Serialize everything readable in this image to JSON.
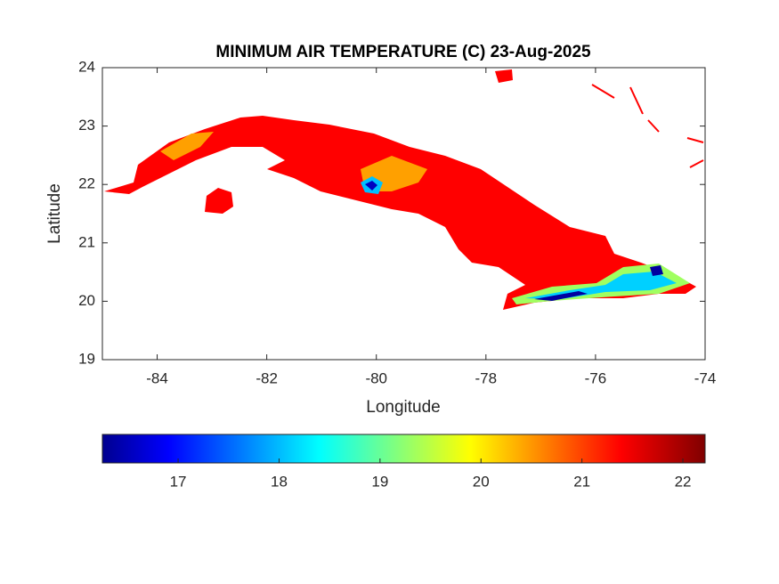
{
  "chart_data": {
    "type": "map",
    "title": "MINIMUM AIR TEMPERATURE (C) 23-Aug-2025",
    "xlabel": "Longitude",
    "ylabel": "Latitude",
    "xlim": [
      -85,
      -74
    ],
    "xticks": [
      -84,
      -82,
      -80,
      -78,
      -76,
      -74
    ],
    "ylim": [
      19,
      24
    ],
    "yticks": [
      19,
      20,
      21,
      22,
      23,
      24
    ],
    "colormap": "jet",
    "clim": [
      16.25,
      22.22
    ],
    "cticks": [
      17,
      18,
      19,
      20,
      21,
      22
    ]
  }
}
